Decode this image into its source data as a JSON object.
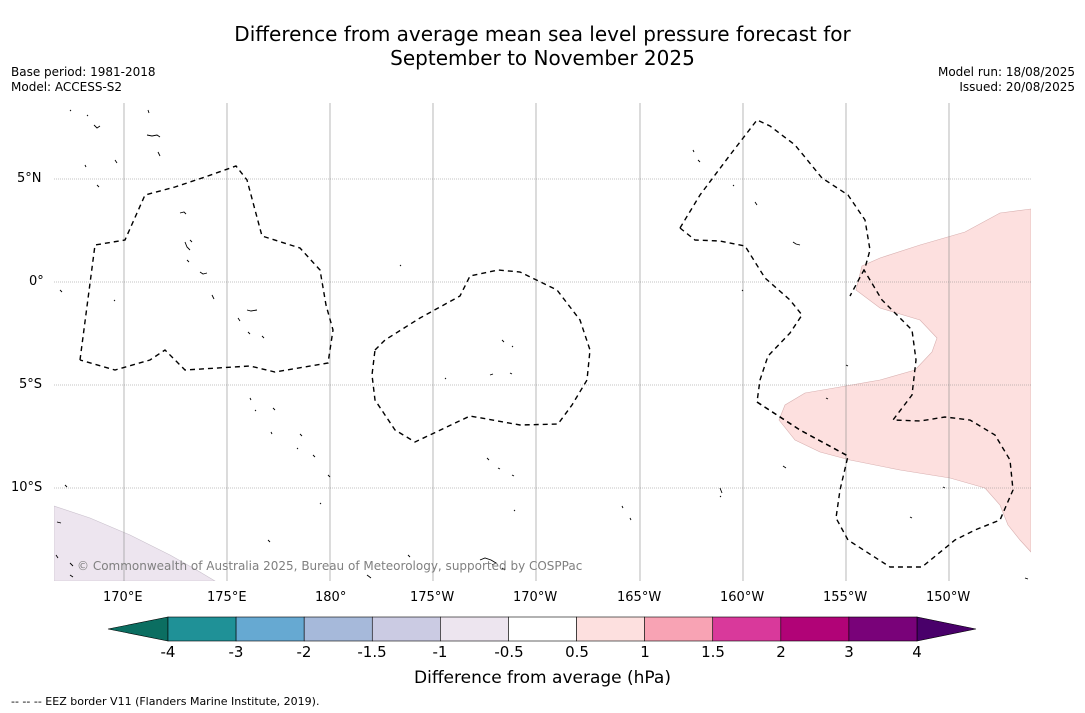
{
  "title_line1": "Difference from average mean sea level pressure forecast for",
  "title_line2": "September to November 2025",
  "base_period": "Base period: 1981-2018",
  "model": "Model: ACCESS-S2",
  "model_run": "Model run: 18/08/2025",
  "issued": "Issued: 20/08/2025",
  "copyright": "© Commonwealth of Australia 2025, Bureau of Meteorology, supported by COSPPac",
  "footnote": "-- -- -- EEZ border V11 (Flanders Marine Institute, 2019).",
  "lon_ticks": [
    "170°E",
    "175°E",
    "180°",
    "175°W",
    "170°W",
    "165°W",
    "160°W",
    "155°W",
    "150°W"
  ],
  "lat_ticks": [
    "5°N",
    "0°",
    "5°S",
    "10°S"
  ],
  "colorbar": {
    "title": "Difference from average (hPa)",
    "labels": [
      "-4",
      "-3",
      "-2",
      "-1.5",
      "-1",
      "-0.5",
      "0.5",
      "1",
      "1.5",
      "2",
      "3",
      "4"
    ],
    "colors": [
      "#1f9197",
      "#66a9d2",
      "#a6b9da",
      "#cbcbe3",
      "#ede5ef",
      "#ffffff",
      "#fde0df",
      "#f8a3b4",
      "#d9399b",
      "#b10377",
      "#790279"
    ],
    "under_color": "#0b6e61",
    "over_color": "#49006a"
  },
  "map_fill_colors": {
    "positive_anomaly": "#fde0df",
    "negative_anomaly": "#ede5ef"
  }
}
